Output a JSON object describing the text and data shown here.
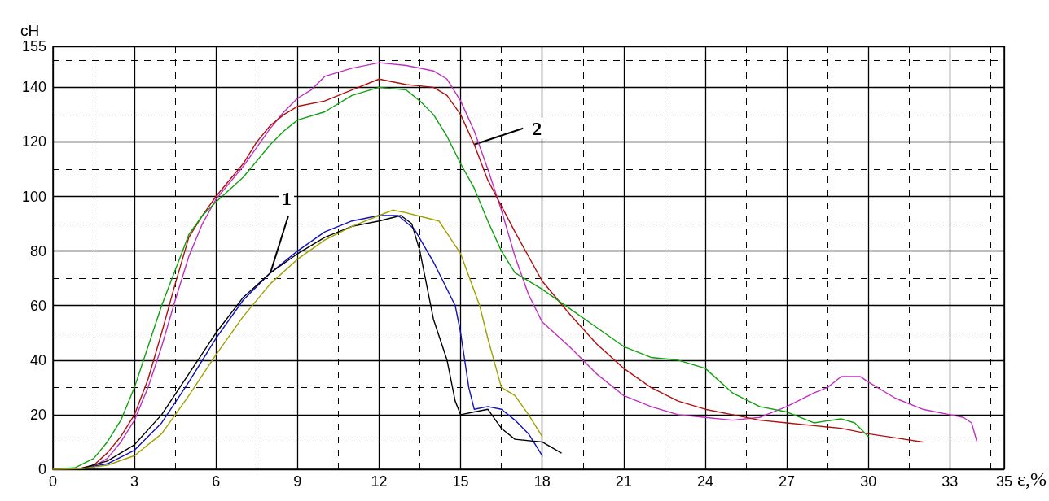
{
  "chart_data": {
    "type": "line",
    "xlabel": "ε,%",
    "ylabel": "cH",
    "xlim": [
      0,
      35
    ],
    "xticks": [
      0,
      3,
      6,
      9,
      12,
      15,
      18,
      21,
      24,
      27,
      30,
      33,
      35
    ],
    "ylim": [
      0,
      155
    ],
    "yticks": [
      0,
      20,
      40,
      60,
      80,
      100,
      120,
      140,
      155
    ],
    "grid": true,
    "marker": "none",
    "line_style": "solid",
    "series": [
      {
        "color": "#c030c0",
        "x": [
          0,
          1,
          1.5,
          2,
          2.5,
          3,
          3.5,
          4,
          4.5,
          5,
          5.5,
          6,
          7,
          7.5,
          8,
          8.5,
          9,
          9.5,
          10,
          11,
          12,
          13,
          14,
          14.5,
          15,
          15.5,
          16,
          16.5,
          17,
          17.5,
          18,
          19,
          20,
          21,
          22,
          23,
          24,
          25,
          26,
          27,
          28,
          28.5,
          29,
          29.7,
          30,
          31,
          32,
          33,
          33.5,
          33.8,
          34
        ],
        "values": [
          0,
          0.3,
          1,
          4,
          10,
          18,
          30,
          45,
          62,
          78,
          90,
          99,
          111,
          118,
          125,
          131,
          136,
          139,
          144,
          147,
          149,
          148,
          146,
          143,
          135,
          124,
          110,
          95,
          78,
          64,
          54,
          45,
          35,
          27,
          23,
          20,
          19,
          18,
          19,
          23,
          28,
          30,
          34,
          34,
          32,
          26,
          22,
          20,
          19,
          17,
          10
        ]
      },
      {
        "color": "#b01010",
        "x": [
          0,
          1,
          1.5,
          2,
          2.5,
          3,
          3.5,
          4,
          4.5,
          5,
          5.5,
          6,
          7,
          7.5,
          8,
          8.5,
          9,
          10,
          11,
          12,
          13,
          14,
          14.5,
          15,
          15.5,
          16,
          17,
          18,
          19,
          20,
          21,
          22,
          23,
          24,
          25,
          26,
          27,
          28,
          29,
          30,
          31,
          32
        ],
        "values": [
          0,
          0.3,
          1.5,
          6,
          12,
          20,
          33,
          50,
          68,
          85,
          93,
          100,
          112,
          120,
          126,
          130,
          133,
          135,
          139,
          143,
          141,
          140,
          137,
          130,
          119,
          106,
          87,
          69,
          57,
          46,
          37,
          30,
          25,
          22,
          20,
          18,
          17,
          16,
          15,
          13,
          11.5,
          10
        ]
      },
      {
        "color": "#10a010",
        "x": [
          0,
          0.8,
          1.5,
          2,
          2.5,
          3,
          3.5,
          4,
          4.5,
          5,
          5.5,
          6,
          7,
          7.5,
          8,
          8.5,
          9,
          10,
          11,
          12,
          13,
          13.5,
          14,
          14.5,
          15,
          15.5,
          16,
          16.5,
          17,
          18,
          19,
          20,
          21,
          22,
          23,
          24,
          25,
          26,
          27,
          28,
          29,
          29.5,
          30
        ],
        "values": [
          0,
          0.5,
          4,
          10,
          18,
          30,
          45,
          60,
          73,
          86,
          93,
          98,
          107,
          113,
          119,
          124,
          128,
          131,
          137,
          140,
          139,
          135,
          130,
          122,
          112,
          103,
          91,
          80,
          72,
          66,
          59,
          52,
          45,
          41,
          40,
          37,
          28,
          23,
          21,
          17,
          18.5,
          17,
          12
        ]
      },
      {
        "color": "#1010c0",
        "x": [
          0,
          1,
          2,
          3,
          4,
          5,
          6,
          7,
          8,
          9,
          10,
          11,
          12,
          12.7,
          13.3,
          14,
          14.8,
          15,
          15.3,
          15.5,
          16,
          16.5,
          17,
          17.5,
          18
        ],
        "values": [
          0,
          0.2,
          2,
          7,
          17,
          32,
          48,
          62,
          72,
          80,
          87,
          91,
          93,
          93,
          88,
          76,
          60,
          50,
          30,
          22,
          23,
          22,
          18,
          13,
          5
        ]
      },
      {
        "color": "#000000",
        "x": [
          0,
          1,
          2,
          3,
          4,
          5,
          6,
          7,
          8,
          9,
          10,
          11,
          12,
          12.8,
          13.2,
          13.5,
          14,
          14.5,
          14.8,
          15,
          15.5,
          16,
          16.5,
          17,
          18,
          18.7
        ],
        "values": [
          0,
          0.2,
          3,
          9,
          20,
          35,
          50,
          63,
          72,
          79,
          85,
          89,
          91,
          93,
          90,
          80,
          55,
          40,
          25,
          20,
          21,
          22,
          15,
          11,
          10,
          6
        ]
      },
      {
        "color": "#a0a000",
        "x": [
          0,
          1,
          2,
          3,
          4,
          5,
          6,
          7,
          8,
          9,
          10,
          11,
          12,
          12.5,
          13,
          14.2,
          15,
          15.7,
          16,
          16.5,
          17,
          17.5,
          18
        ],
        "values": [
          0,
          0.2,
          1.5,
          5,
          13,
          27,
          42,
          56,
          68,
          77,
          84,
          89,
          93,
          95,
          94,
          91,
          79,
          60,
          48,
          30,
          27,
          20,
          12
        ]
      }
    ],
    "annotations": [
      {
        "text": "1",
        "x": 8,
        "y": 72
      },
      {
        "text": "2",
        "x": 15.5,
        "y": 119
      }
    ]
  }
}
